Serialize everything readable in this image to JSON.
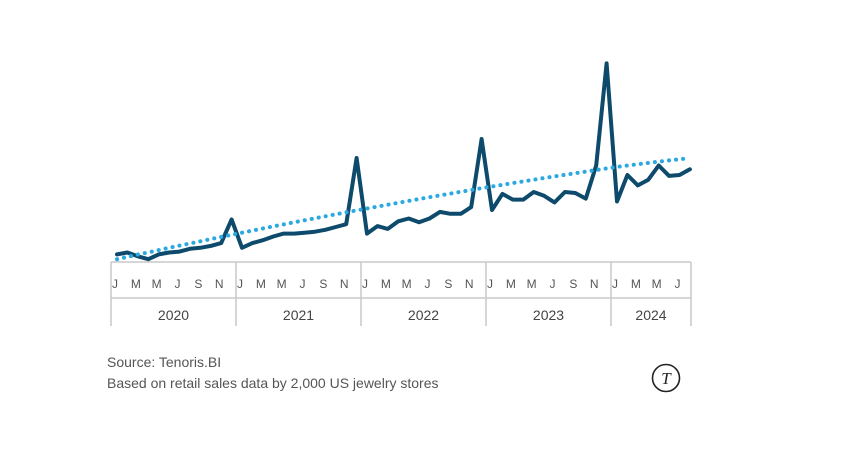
{
  "chart_data": {
    "type": "line",
    "title": "",
    "xlabel": "",
    "ylabel": "",
    "month_tick_labels": [
      "J",
      "M",
      "M",
      "J",
      "S",
      "N"
    ],
    "month_tick_labels_2024": [
      "J",
      "M",
      "M",
      "J"
    ],
    "years": [
      "2020",
      "2021",
      "2022",
      "2023",
      "2024"
    ],
    "x_start": "2020-01",
    "x_end": "2024-08",
    "y_axis_visible": false,
    "gridlines": false,
    "ylim": [
      0,
      240
    ],
    "series": [
      {
        "style": "solid",
        "color": "#0d4a6b",
        "values": [
          8,
          10,
          6,
          3,
          8,
          10,
          11,
          14,
          15,
          17,
          20,
          45,
          15,
          20,
          23,
          27,
          30,
          30,
          31,
          32,
          34,
          37,
          40,
          110,
          30,
          38,
          35,
          43,
          46,
          42,
          46,
          53,
          51,
          51,
          58,
          130,
          55,
          72,
          66,
          66,
          74,
          70,
          63,
          74,
          73,
          67,
          102,
          210,
          64,
          92,
          81,
          87,
          102,
          91,
          92,
          98
        ]
      },
      {
        "style": "dotted",
        "color": "#2ba8e0",
        "values": [
          3,
          5.4,
          7.8,
          10.2,
          12.6,
          15,
          17.3,
          19.6,
          21.9,
          24.2,
          26.5,
          28.8,
          31,
          33.2,
          35.4,
          37.6,
          39.8,
          42,
          44.1,
          46.2,
          48.3,
          50.4,
          52.5,
          54.6,
          56.6,
          58.6,
          60.6,
          62.6,
          64.6,
          66.6,
          68.5,
          70.4,
          72.3,
          74.2,
          76.1,
          78,
          79.8,
          81.6,
          83.4,
          85.2,
          87,
          88.8,
          90.5,
          92.2,
          93.9,
          95.6,
          97.3,
          99,
          100.5,
          102,
          103.4,
          104.8,
          106.1,
          107.4,
          108.6,
          109.8
        ]
      }
    ]
  },
  "footer": {
    "source": "Source: Tenoris.BI",
    "note": "Based on retail sales data by 2,000 US jewelry stores"
  },
  "logo": {
    "icon": "tenoris-logo-icon",
    "glyph": "T",
    "color": "#222222"
  },
  "colors": {
    "axis": "#c8c8c8",
    "line": "#0d4a6b",
    "trend": "#2ba8e0"
  }
}
